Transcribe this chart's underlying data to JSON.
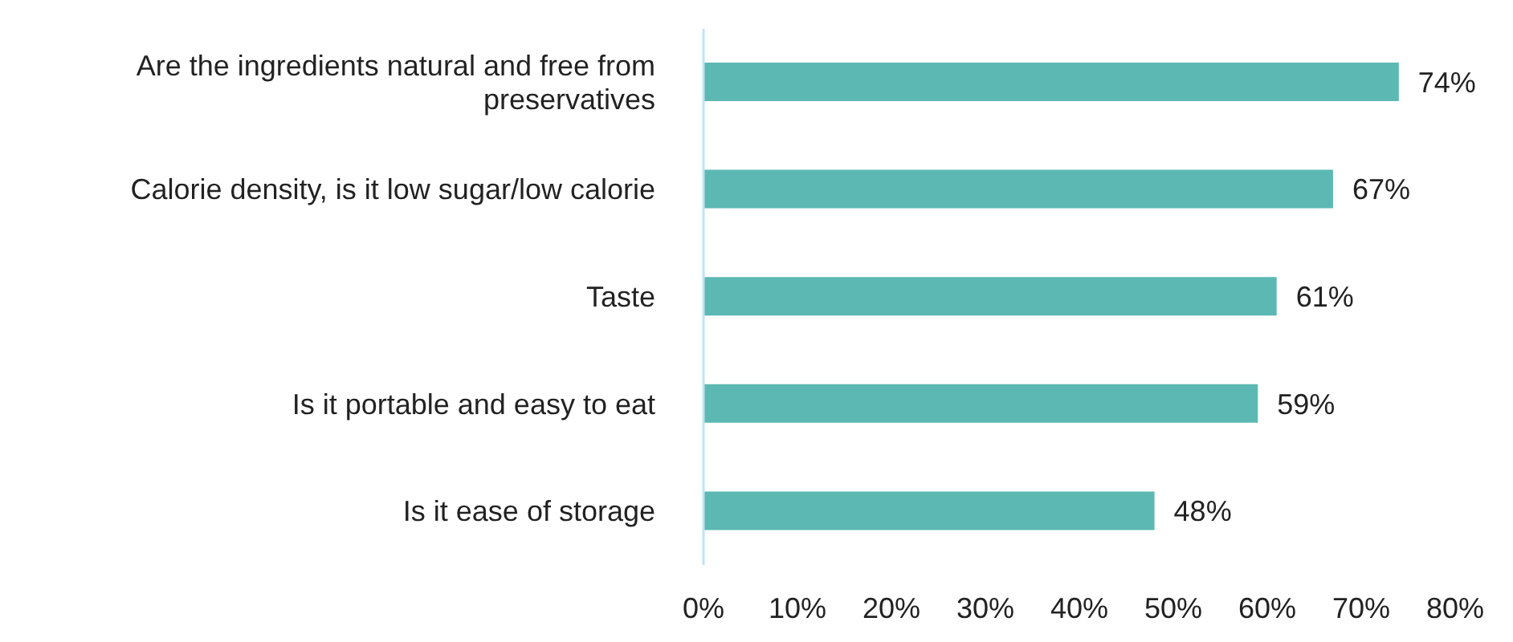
{
  "chart_data": {
    "type": "bar",
    "orientation": "horizontal",
    "categories": [
      "Are the ingredients natural and free from preservatives",
      "Calorie density, is it low sugar/low calorie",
      "Taste",
      "Is it portable and easy to eat",
      "Is it ease of storage"
    ],
    "values": [
      74,
      67,
      61,
      59,
      48
    ],
    "value_labels": [
      "74%",
      "67%",
      "61%",
      "59%",
      "48%"
    ],
    "color": "#5cb8b2",
    "xlim": [
      0,
      80
    ],
    "xticks": [
      {
        "value": 0,
        "label": "0%"
      },
      {
        "value": 10,
        "label": "10%"
      },
      {
        "value": 20,
        "label": "20%"
      },
      {
        "value": 30,
        "label": "30%"
      },
      {
        "value": 40,
        "label": "40%"
      },
      {
        "value": 50,
        "label": "50%"
      },
      {
        "value": 60,
        "label": "60%"
      },
      {
        "value": 70,
        "label": "70%"
      },
      {
        "value": 80,
        "label": "80%"
      }
    ],
    "grid": false
  }
}
